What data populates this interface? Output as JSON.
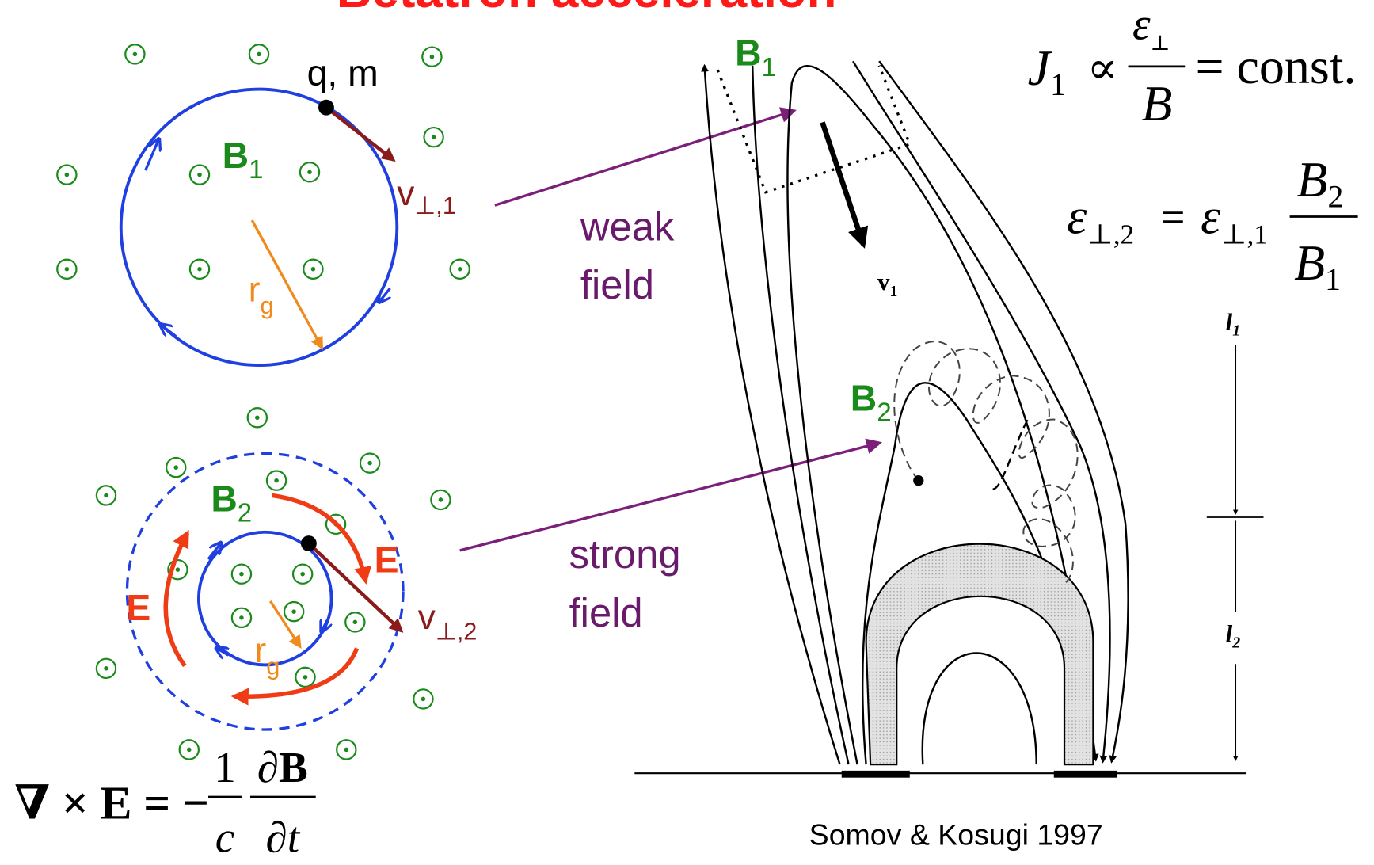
{
  "title": "Betatron acceleration",
  "top_orbit": {
    "particle": "q, m",
    "field": {
      "text": "B",
      "sub": "1"
    },
    "velocity": {
      "text": "v",
      "sub": "⊥,1"
    },
    "radius": {
      "text": "r",
      "sub": "g"
    }
  },
  "bottom_orbit": {
    "field": {
      "text": "B",
      "sub": "2"
    },
    "velocity": {
      "text": "v",
      "sub": "⊥,2"
    },
    "radius": {
      "text": "r",
      "sub": "g"
    },
    "electric_left": "E",
    "electric_right": "E"
  },
  "annotations": {
    "weak": [
      "weak",
      "field"
    ],
    "strong": [
      "strong",
      "field"
    ]
  },
  "loop": {
    "field_top": {
      "text": "B",
      "sub": "1"
    },
    "field_bottom": {
      "text": "B",
      "sub": "2"
    },
    "velocity": {
      "text": "v",
      "sub": "1"
    },
    "length_top": {
      "text": "l",
      "sub": "1"
    },
    "length_bottom": {
      "text": "l",
      "sub": "2"
    }
  },
  "equations": {
    "invariant": {
      "lhs": "J",
      "lhs_sub": "1",
      "relation": "∝",
      "numerator": "ε",
      "numerator_sub": "⊥",
      "denominator": "B",
      "rhs": "= const."
    },
    "energy": {
      "lhs": "ε",
      "lhs_sub": "⊥,2",
      "equals": "=",
      "factor": "ε",
      "factor_sub": "⊥,1",
      "numerator": "B",
      "numerator_sub": "2",
      "denominator": "B",
      "denominator_sub": "1"
    },
    "faraday": {
      "lhs": "∇ × E = −",
      "num1": "1",
      "den1": "c",
      "num2": "∂B",
      "den2": "∂t"
    }
  },
  "credit": "Somov & Kosugi 1997"
}
